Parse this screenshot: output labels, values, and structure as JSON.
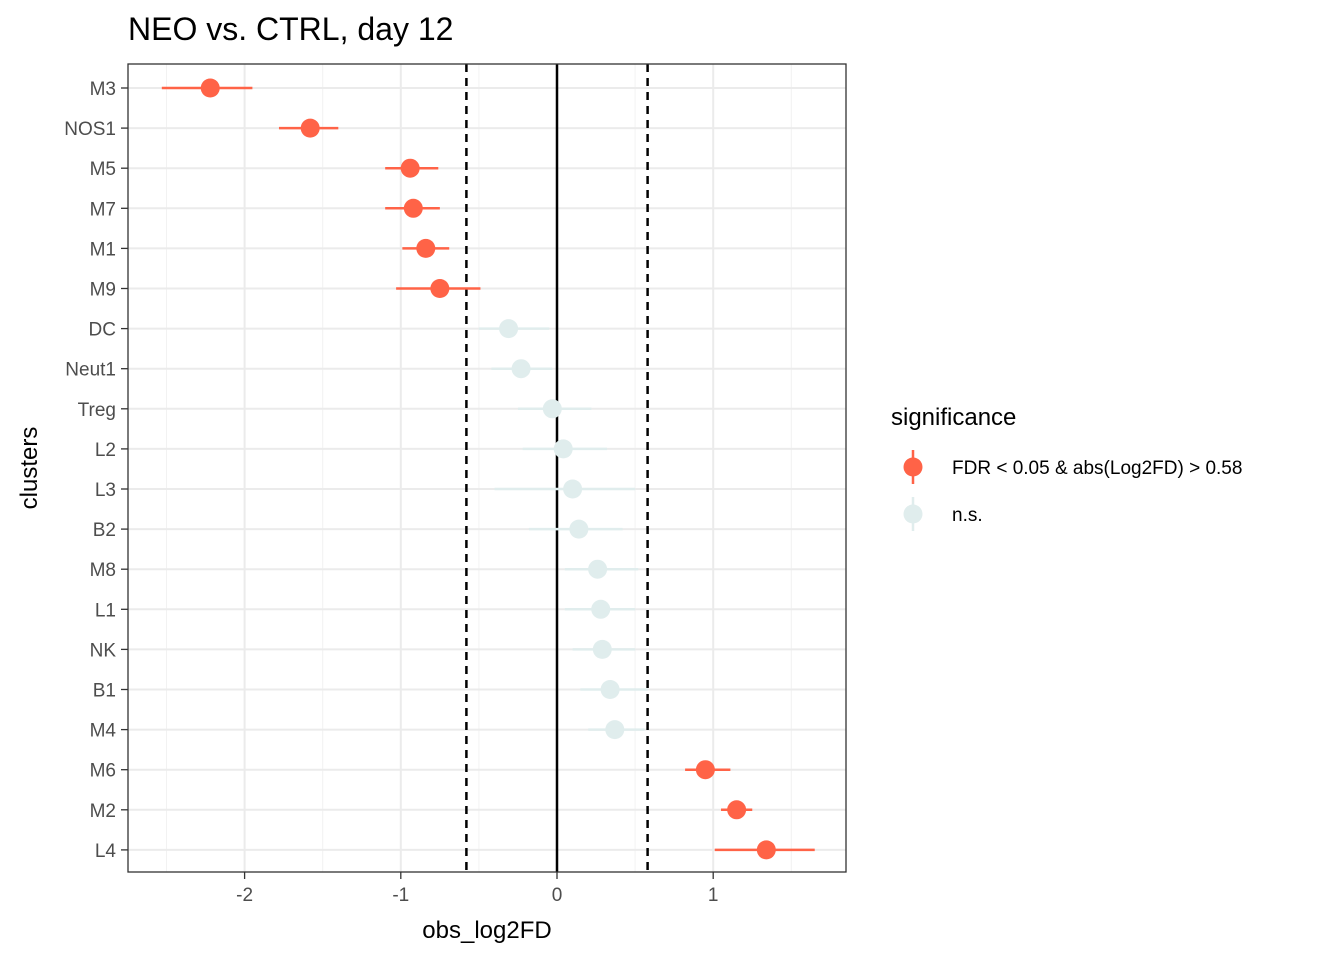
{
  "chart_data": {
    "type": "scatter",
    "title": "NEO vs. CTRL, day 12",
    "xlabel": "obs_log2FD",
    "ylabel": "clusters",
    "xlim": [
      -2.75,
      1.85
    ],
    "x_ticks": [
      -2,
      -1,
      0,
      1
    ],
    "x_tick_labels": [
      "-2",
      "-1",
      "0",
      "1"
    ],
    "grid": true,
    "reference_lines": {
      "solid": [
        0
      ],
      "dashed": [
        -0.58,
        0.58
      ]
    },
    "legend": {
      "title": "significance",
      "placement": "right",
      "entries": [
        {
          "label": "FDR < 0.05 & abs(Log2FD) > 0.58",
          "color": "#ff6347"
        },
        {
          "label": "n.s.",
          "color": "#e0eded"
        }
      ]
    },
    "colors": {
      "significant": "#ff6347",
      "ns": "#e0eded"
    },
    "points": [
      {
        "cluster": "M3",
        "x": -2.22,
        "low": -2.53,
        "high": -1.95,
        "sig": true
      },
      {
        "cluster": "NOS1",
        "x": -1.58,
        "low": -1.78,
        "high": -1.4,
        "sig": true
      },
      {
        "cluster": "M5",
        "x": -0.94,
        "low": -1.1,
        "high": -0.76,
        "sig": true
      },
      {
        "cluster": "M7",
        "x": -0.92,
        "low": -1.1,
        "high": -0.75,
        "sig": true
      },
      {
        "cluster": "M1",
        "x": -0.84,
        "low": -0.99,
        "high": -0.69,
        "sig": true
      },
      {
        "cluster": "M9",
        "x": -0.75,
        "low": -1.03,
        "high": -0.49,
        "sig": true
      },
      {
        "cluster": "DC",
        "x": -0.31,
        "low": -0.5,
        "high": -0.05,
        "sig": false
      },
      {
        "cluster": "Neut1",
        "x": -0.23,
        "low": -0.42,
        "high": -0.03,
        "sig": false
      },
      {
        "cluster": "Treg",
        "x": -0.03,
        "low": -0.25,
        "high": 0.22,
        "sig": false
      },
      {
        "cluster": "L2",
        "x": 0.04,
        "low": -0.22,
        "high": 0.32,
        "sig": false
      },
      {
        "cluster": "L3",
        "x": 0.1,
        "low": -0.4,
        "high": 0.5,
        "sig": false
      },
      {
        "cluster": "B2",
        "x": 0.14,
        "low": -0.18,
        "high": 0.42,
        "sig": false
      },
      {
        "cluster": "M8",
        "x": 0.26,
        "low": 0.05,
        "high": 0.52,
        "sig": false
      },
      {
        "cluster": "L1",
        "x": 0.28,
        "low": 0.05,
        "high": 0.5,
        "sig": false
      },
      {
        "cluster": "NK",
        "x": 0.29,
        "low": 0.1,
        "high": 0.5,
        "sig": false
      },
      {
        "cluster": "B1",
        "x": 0.34,
        "low": 0.15,
        "high": 0.58,
        "sig": false
      },
      {
        "cluster": "M4",
        "x": 0.37,
        "low": 0.2,
        "high": 0.56,
        "sig": false
      },
      {
        "cluster": "M6",
        "x": 0.95,
        "low": 0.82,
        "high": 1.11,
        "sig": true
      },
      {
        "cluster": "M2",
        "x": 1.15,
        "low": 1.05,
        "high": 1.25,
        "sig": true
      },
      {
        "cluster": "L4",
        "x": 1.34,
        "low": 1.01,
        "high": 1.65,
        "sig": true
      }
    ]
  }
}
